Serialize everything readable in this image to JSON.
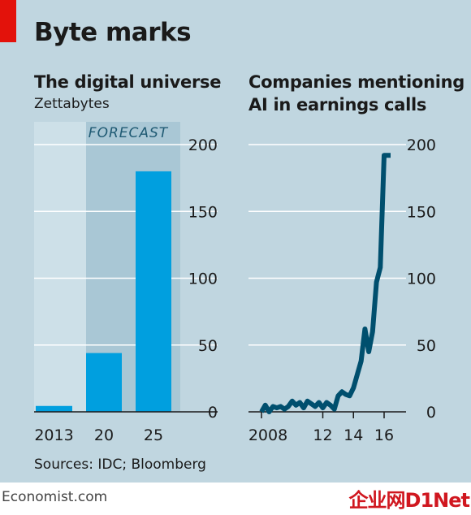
{
  "title": "Byte marks",
  "source": "Sources: IDC; Bloomberg",
  "footer": {
    "site": "Economist.com",
    "watermark": "企业网D1Net"
  },
  "colors": {
    "background": "#c0d6e0",
    "bar": "#009fdf",
    "line": "#004f6e",
    "forecast_band": "#a9c7d5",
    "accent": "#e3120b"
  },
  "chart_data": [
    {
      "type": "bar",
      "title": "The digital universe",
      "subtitle": "Zettabytes",
      "categories": [
        "2013",
        "20",
        "25"
      ],
      "values": [
        4.4,
        44,
        180
      ],
      "annotation": "FORECAST",
      "ylim": [
        0,
        200
      ],
      "yticks": [
        0,
        50,
        100,
        150,
        200
      ],
      "grid": true
    },
    {
      "type": "line",
      "title_lines": [
        "Companies mentioning",
        "AI in earnings calls"
      ],
      "xlim": [
        2008,
        2017
      ],
      "xticks": [
        {
          "value": 2008,
          "label": "2008"
        },
        {
          "value": 2012,
          "label": "12"
        },
        {
          "value": 2014,
          "label": "14"
        },
        {
          "value": 2016,
          "label": "16"
        }
      ],
      "ylim": [
        0,
        200
      ],
      "yticks": [
        0,
        50,
        100,
        150,
        200
      ],
      "grid": true,
      "x": [
        2008.0,
        2008.25,
        2008.5,
        2008.75,
        2009.0,
        2009.25,
        2009.5,
        2009.75,
        2010.0,
        2010.25,
        2010.5,
        2010.75,
        2011.0,
        2011.25,
        2011.5,
        2011.75,
        2012.0,
        2012.25,
        2012.5,
        2012.75,
        2013.0,
        2013.25,
        2013.5,
        2013.75,
        2014.0,
        2014.25,
        2014.5,
        2014.75,
        2015.0,
        2015.25,
        2015.5,
        2015.75,
        2016.0,
        2016.25,
        2016.5
      ],
      "values": [
        0,
        5,
        0,
        4,
        3,
        4,
        2,
        4,
        8,
        5,
        7,
        3,
        8,
        6,
        4,
        7,
        3,
        7,
        5,
        2,
        12,
        15,
        13,
        12,
        18,
        28,
        38,
        62,
        45,
        60,
        97,
        108,
        192,
        192,
        192
      ]
    }
  ]
}
